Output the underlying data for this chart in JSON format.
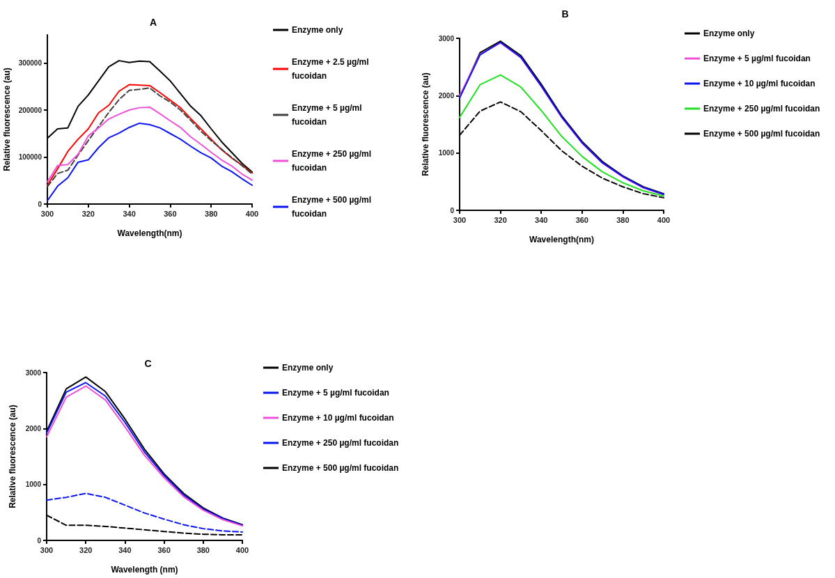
{
  "chart_data": [
    {
      "type": "line",
      "title": "A",
      "xlabel": "Wavelength(nm)",
      "ylabel": "Relative fluorescence (au)",
      "x": [
        300,
        305,
        310,
        315,
        320,
        325,
        330,
        335,
        340,
        345,
        350,
        355,
        360,
        365,
        370,
        375,
        380,
        385,
        390,
        395,
        400
      ],
      "xlim": [
        300,
        400
      ],
      "xticks": [
        300,
        320,
        340,
        360,
        380,
        400
      ],
      "ylim": [
        0,
        360000
      ],
      "yticks": [
        0,
        100000,
        200000,
        300000
      ],
      "grid": false,
      "legend": "right",
      "marker": "none",
      "series": [
        {
          "name": "Enzyme only",
          "color": "#000000",
          "line_style": "solid",
          "values": [
            140000,
            160000,
            162000,
            208000,
            232000,
            262000,
            292000,
            305000,
            301000,
            304000,
            303000,
            283000,
            262000,
            235000,
            208000,
            188000,
            160000,
            133000,
            110000,
            87000,
            68000
          ]
        },
        {
          "name": "Enzyme + 2.5 µg/ml fucoidan",
          "color": "#ff0000",
          "line_style": "solid",
          "values": [
            40000,
            75000,
            112000,
            138000,
            160000,
            194000,
            210000,
            240000,
            254000,
            253000,
            252000,
            237000,
            221000,
            205000,
            182000,
            160000,
            138000,
            116000,
            98000,
            83000,
            66000
          ]
        },
        {
          "name": "Enzyme + 5 µg/ml fucoidan",
          "color": "#404040",
          "line_style": "dashed",
          "values": [
            37000,
            65000,
            72000,
            104000,
            135000,
            165000,
            195000,
            222000,
            242000,
            244000,
            247000,
            230000,
            217000,
            200000,
            178000,
            155000,
            135000,
            117000,
            99000,
            82000,
            64000
          ]
        },
        {
          "name": "Enzyme + 250 µg/ml fucoidan",
          "color": "#f050d8",
          "line_style": "solid",
          "values": [
            47000,
            82000,
            84000,
            106000,
            145000,
            162000,
            181000,
            191000,
            200000,
            205000,
            206000,
            192000,
            177000,
            163000,
            143000,
            127000,
            110000,
            94000,
            81000,
            64000,
            51000
          ]
        },
        {
          "name": "Enzyme + 500 µg/ml fucoidan",
          "color": "#0a14f0",
          "line_style": "solid",
          "values": [
            7000,
            38000,
            56000,
            89000,
            94000,
            120000,
            141000,
            151000,
            163000,
            172000,
            169000,
            162000,
            150000,
            138000,
            123000,
            109000,
            98000,
            81000,
            69000,
            54000,
            40000
          ]
        }
      ]
    },
    {
      "type": "line",
      "title": "B",
      "xlabel": "Wavelength(nm)",
      "ylabel": "Relative fluorescence (au)",
      "x": [
        300,
        310,
        320,
        330,
        340,
        350,
        360,
        370,
        380,
        390,
        400
      ],
      "xlim": [
        300,
        400
      ],
      "xticks": [
        300,
        320,
        340,
        360,
        380,
        400
      ],
      "ylim": [
        0,
        3000
      ],
      "yticks": [
        0,
        1000,
        2000,
        3000
      ],
      "grid": false,
      "legend": "right",
      "marker": "none",
      "series": [
        {
          "name": "Enzyme only",
          "color": "#000000",
          "line_style": "solid",
          "values": [
            1970,
            2750,
            2950,
            2700,
            2200,
            1650,
            1200,
            850,
            600,
            410,
            290
          ]
        },
        {
          "name": "Enzyme + 5 µg/ml fucoidan",
          "color": "#f050d8",
          "line_style": "solid",
          "values": [
            2000,
            2720,
            2920,
            2660,
            2160,
            1620,
            1170,
            820,
            580,
            390,
            270
          ]
        },
        {
          "name": "Enzyme + 10 µg/ml fucoidan",
          "color": "#0a14f0",
          "line_style": "solid",
          "values": [
            1960,
            2710,
            2930,
            2670,
            2170,
            1630,
            1180,
            830,
            590,
            400,
            280
          ]
        },
        {
          "name": "Enzyme + 250 µg/ml fucoidan",
          "color": "#22e022",
          "line_style": "solid",
          "values": [
            1620,
            2190,
            2360,
            2150,
            1740,
            1290,
            940,
            670,
            480,
            340,
            250
          ]
        },
        {
          "name": "Enzyme + 500 µg/ml fucoidan",
          "color": "#000000",
          "line_style": "dashed",
          "values": [
            1310,
            1730,
            1890,
            1720,
            1390,
            1040,
            770,
            560,
            410,
            290,
            220
          ]
        }
      ]
    },
    {
      "type": "line",
      "title": "C",
      "xlabel": "Wavelength (nm)",
      "ylabel": "Relative fluorescence (au)",
      "x": [
        300,
        310,
        320,
        330,
        340,
        350,
        360,
        370,
        380,
        390,
        400
      ],
      "xlim": [
        300,
        400
      ],
      "xticks": [
        300,
        320,
        340,
        360,
        380,
        400
      ],
      "ylim": [
        0,
        3000
      ],
      "yticks": [
        0,
        1000,
        2000,
        3000
      ],
      "grid": false,
      "legend": "right",
      "marker": "none",
      "series": [
        {
          "name": "Enzyme only",
          "color": "#000000",
          "line_style": "solid",
          "values": [
            1950,
            2710,
            2920,
            2660,
            2170,
            1630,
            1190,
            840,
            580,
            400,
            280
          ]
        },
        {
          "name": "Enzyme + 5 µg/ml fucoidan",
          "color": "#0a14f0",
          "line_style": "solid",
          "values": [
            1920,
            2650,
            2820,
            2580,
            2110,
            1580,
            1160,
            810,
            560,
            390,
            270
          ]
        },
        {
          "name": "Enzyme + 10 µg/ml fucoidan",
          "color": "#f050d8",
          "line_style": "solid",
          "values": [
            1850,
            2560,
            2760,
            2510,
            2030,
            1520,
            1120,
            780,
            540,
            370,
            260
          ]
        },
        {
          "name": "Enzyme + 250 µg/ml fucoidan",
          "color": "#0a14f0",
          "line_style": "dashed",
          "values": [
            720,
            770,
            840,
            770,
            630,
            490,
            380,
            280,
            210,
            170,
            150
          ]
        },
        {
          "name": "Enzyme + 500 µg/ml fucoidan",
          "color": "#000000",
          "line_style": "dashed",
          "values": [
            450,
            270,
            270,
            250,
            220,
            190,
            160,
            130,
            110,
            100,
            100
          ]
        }
      ]
    }
  ]
}
